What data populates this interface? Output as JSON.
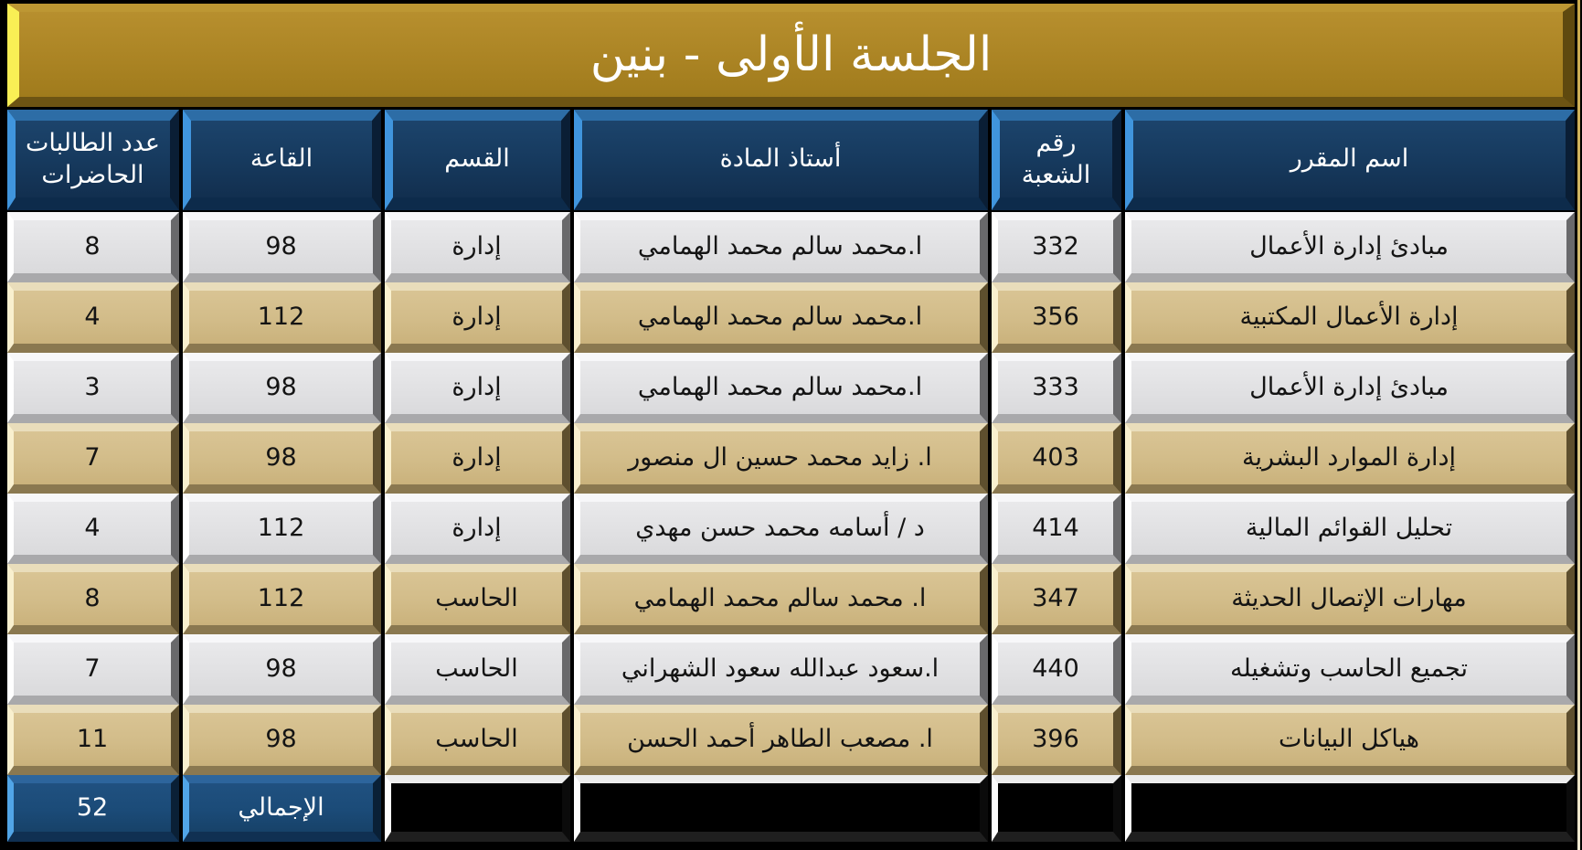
{
  "title": "الجلسة الأولى - بنين",
  "colors": {
    "title_gold": "#ab8424",
    "title_bevel_yellow": "#f9ef55",
    "header_navy": "#16395d",
    "header_bevel_blue": "#4095dd",
    "row_light": "#e1e1e3",
    "row_tan": "#d2bc89",
    "total_blue": "#1b4b78",
    "total_black": "#000000",
    "background": "#000000"
  },
  "table": {
    "columns": [
      {
        "key": "course",
        "label": "اسم المقرر"
      },
      {
        "key": "section",
        "label": "رقم الشعبة"
      },
      {
        "key": "instructor",
        "label": "أستاذ المادة"
      },
      {
        "key": "department",
        "label": "القسم"
      },
      {
        "key": "hall",
        "label": "القاعة"
      },
      {
        "key": "count",
        "label": "عدد الطالبات الحاضرات"
      }
    ],
    "rows": [
      {
        "variant": "light",
        "course": "مبادئ إدارة الأعمال",
        "section": "332",
        "instructor": "ا.محمد سالم محمد الهمامي",
        "department": "إدارة",
        "hall": "98",
        "count": "8"
      },
      {
        "variant": "tan",
        "course": "إدارة الأعمال المكتبية",
        "section": "356",
        "instructor": "ا.محمد سالم محمد الهمامي",
        "department": "إدارة",
        "hall": "112",
        "count": "4"
      },
      {
        "variant": "light",
        "course": "مبادئ إدارة الأعمال",
        "section": "333",
        "instructor": "ا.محمد سالم محمد الهمامي",
        "department": "إدارة",
        "hall": "98",
        "count": "3"
      },
      {
        "variant": "tan",
        "course": "إدارة الموارد البشرية",
        "section": "403",
        "instructor": "ا. زايد محمد حسين ال منصور",
        "department": "إدارة",
        "hall": "98",
        "count": "7"
      },
      {
        "variant": "light",
        "course": "تحليل القوائم المالية",
        "section": "414",
        "instructor": "د / أسامه محمد حسن مهدي",
        "department": "إدارة",
        "hall": "112",
        "count": "4"
      },
      {
        "variant": "tan",
        "course": "مهارات الإتصال الحديثة",
        "section": "347",
        "instructor": "ا. محمد سالم محمد الهمامي",
        "department": "الحاسب",
        "hall": "112",
        "count": "8"
      },
      {
        "variant": "light",
        "course": "تجميع الحاسب وتشغيله",
        "section": "440",
        "instructor": "ا.سعود عبدالله سعود الشهراني",
        "department": "الحاسب",
        "hall": "98",
        "count": "7"
      },
      {
        "variant": "tan",
        "course": "هياكل البيانات",
        "section": "396",
        "instructor": "ا. مصعب الطاهر أحمد الحسن",
        "department": "الحاسب",
        "hall": "98",
        "count": "11"
      }
    ],
    "total": {
      "label": "الإجمالي",
      "count": "52"
    }
  }
}
